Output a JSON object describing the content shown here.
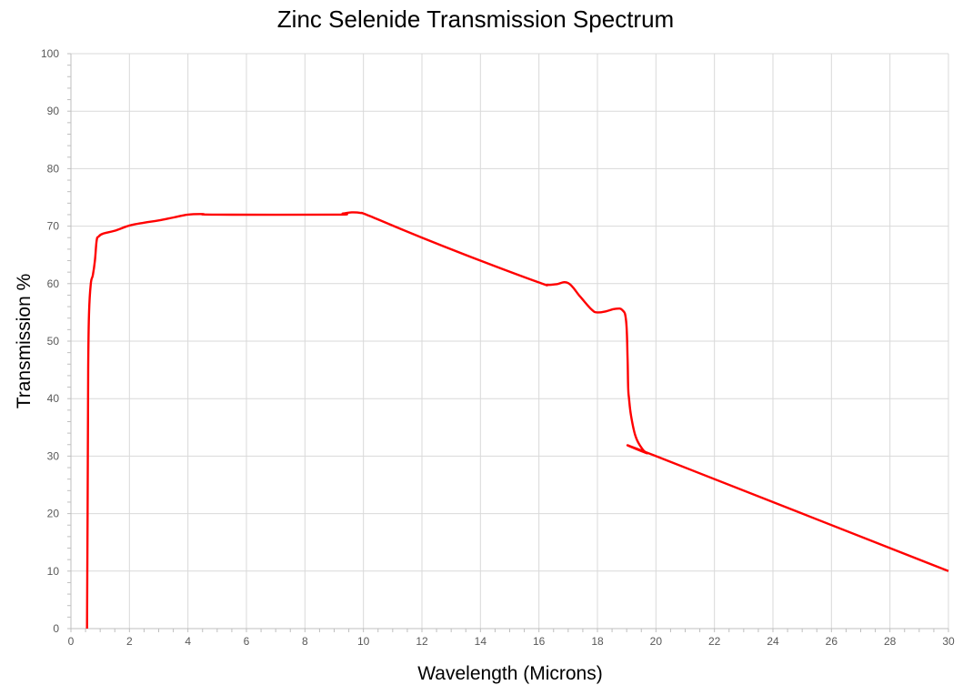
{
  "chart_data": {
    "type": "line",
    "title": "Zinc Selenide Transmission Spectrum",
    "xlabel": "Wavelength (Microns)",
    "ylabel": "Transmission %",
    "xlim": [
      0,
      30
    ],
    "ylim": [
      0,
      100
    ],
    "x_major_step": 2,
    "x_minor_step": 0.5,
    "y_major_step": 10,
    "y_minor_step": 2,
    "grid": true,
    "legend": "none",
    "xticks": [
      "0",
      "2",
      "4",
      "6",
      "8",
      "10",
      "12",
      "14",
      "16",
      "18",
      "20",
      "22",
      "24",
      "26",
      "28",
      "30"
    ],
    "yticks": [
      "0",
      "10",
      "20",
      "30",
      "40",
      "50",
      "60",
      "70",
      "80",
      "90",
      "100"
    ],
    "series": [
      {
        "name": "Zinc Selenide",
        "color": "#ff0000",
        "x": [
          0.55,
          0.57,
          0.59,
          0.62,
          0.68,
          0.75,
          0.82,
          0.88,
          0.95,
          1.1,
          1.5,
          2,
          2.5,
          3,
          3.5,
          4,
          4.5,
          5,
          9,
          9.3,
          9.6,
          9.9,
          10.2,
          12,
          14,
          16,
          16.3,
          16.6,
          17,
          17.4,
          17.8,
          18,
          18.3,
          18.6,
          18.85,
          18.98,
          19.03,
          19.05,
          19.08,
          19.15,
          19.3,
          19.5,
          19.7,
          20,
          30
        ],
        "y": [
          0,
          20,
          45,
          55,
          60,
          61.5,
          64,
          67.5,
          68.2,
          68.7,
          69.2,
          70.1,
          70.6,
          71,
          71.5,
          72,
          72.1,
          72,
          72,
          72.2,
          72.4,
          72.3,
          71.8,
          68,
          64,
          60.2,
          59.8,
          59.9,
          60.1,
          57.8,
          55.5,
          55,
          55.2,
          55.6,
          55.4,
          53.5,
          47,
          42,
          40,
          37,
          33.5,
          31.5,
          30.5,
          30,
          10
        ]
      }
    ]
  },
  "colors": {
    "line": "#ff0000",
    "grid": "#d9d9d9",
    "axis": "#bfbfbf"
  }
}
